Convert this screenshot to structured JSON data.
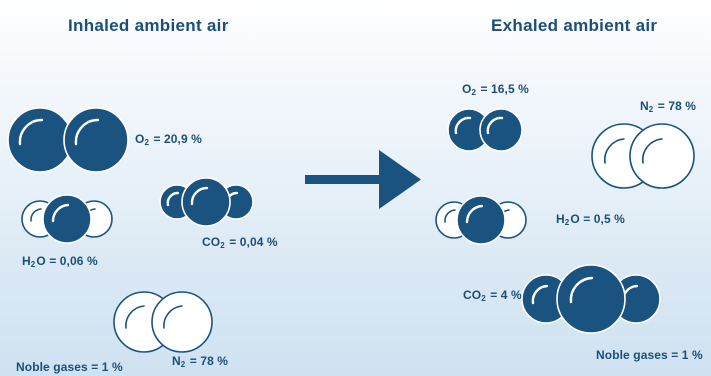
{
  "titles": {
    "inhaled": "Inhaled ambient air",
    "exhaled": "Exhaled ambient air"
  },
  "inhaled": {
    "o2": {
      "formula_main": "O",
      "formula_sub": "2",
      "value": "= 20,9 %"
    },
    "h2o": {
      "formula_main": "H",
      "formula_sub": "2",
      "formula_rest": "O",
      "value": "= 0,06 %"
    },
    "co2": {
      "formula_main": "CO",
      "formula_sub": "2",
      "value": "= 0,04 %"
    },
    "noble": {
      "text": "Noble gases = 1 %"
    },
    "n2": {
      "formula_main": "N",
      "formula_sub": "2",
      "value": "= 78 %"
    }
  },
  "exhaled": {
    "o2": {
      "formula_main": "O",
      "formula_sub": "2",
      "value": "= 16,5 %"
    },
    "n2": {
      "formula_main": "N",
      "formula_sub": "2",
      "value": "= 78 %"
    },
    "h2o": {
      "formula_main": "H",
      "formula_sub": "2",
      "formula_rest": "O",
      "value": "= 0,5 %"
    },
    "co2": {
      "formula_main": "CO",
      "formula_sub": "2",
      "value": "= 4 %"
    },
    "noble": {
      "text": "Noble gases = 1 %"
    }
  },
  "colors": {
    "molecule": "#1b5380",
    "text": "#1b4f7a"
  }
}
